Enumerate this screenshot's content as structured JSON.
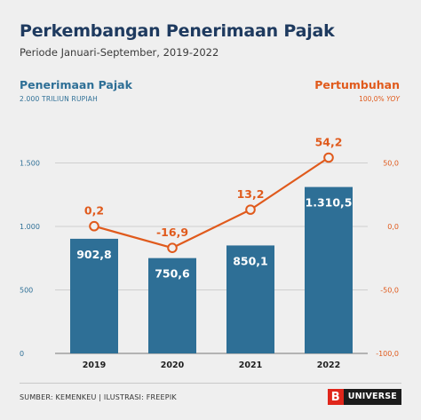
{
  "header": {
    "title": "Perkembangan Penerimaan Pajak",
    "subtitle": "Periode Januari-September, 2019-2022"
  },
  "left_axis": {
    "label": "Penerimaan Pajak",
    "unit": "2.000 TRILIUN RUPIAH"
  },
  "right_axis": {
    "label": "Pertumbuhan",
    "unit_prefix": "100,0%",
    "unit_suffix": "YOY"
  },
  "footer": {
    "source": "SUMBER: KEMENKEU  |  ILUSTRASI: FREEPIK",
    "logo_letter": "B",
    "logo_text": "UNIVERSE"
  },
  "colors": {
    "bar": "#2e6f96",
    "line": "#e05a1c",
    "title": "#1e3a5f"
  },
  "chart_data": {
    "type": "bar+line",
    "categories": [
      "2019",
      "2020",
      "2021",
      "2022"
    ],
    "series": [
      {
        "name": "Penerimaan Pajak",
        "type": "bar",
        "axis": "left",
        "values": [
          902.8,
          750.6,
          850.1,
          1310.5
        ],
        "labels": [
          "902,8",
          "750,6",
          "850,1",
          "1.310,5"
        ]
      },
      {
        "name": "Pertumbuhan",
        "type": "line",
        "axis": "right",
        "values": [
          0.2,
          -16.9,
          13.2,
          54.2
        ],
        "labels": [
          "0,2",
          "-16,9",
          "13,2",
          "54,2"
        ]
      }
    ],
    "left_ylim": [
      0,
      2000
    ],
    "left_ticks": [
      0,
      500,
      1000,
      1500
    ],
    "left_tick_labels": [
      "0",
      "500",
      "1.000",
      "1.500"
    ],
    "right_ylim": [
      -100,
      100
    ],
    "right_ticks": [
      -100,
      -50,
      0,
      50
    ],
    "right_tick_labels": [
      "-100,0",
      "-50,0",
      "0,0",
      "50,0"
    ],
    "grid": true
  }
}
